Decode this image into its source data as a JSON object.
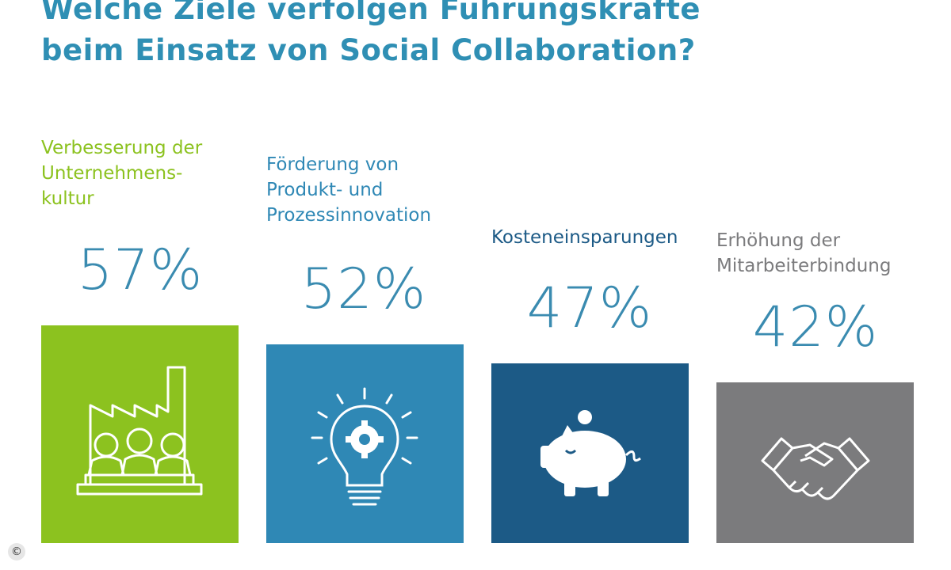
{
  "title_lines": [
    "Welche Ziele verfolgen Führungskräfte",
    "beim Einsatz von Social Collaboration?"
  ],
  "colors": {
    "title": "#2f8fb4",
    "percent": "#3a8bb0",
    "series": [
      "#8cc21f",
      "#2f88b5",
      "#1c5a86",
      "#7b7b7d"
    ],
    "label_colors": [
      "#8cc21f",
      "#2f88b5",
      "#1c5a86",
      "#7b7b7d"
    ]
  },
  "chart_data": {
    "type": "bar",
    "title": "Welche Ziele verfolgen Führungskräfte beim Einsatz von Social Collaboration?",
    "categories": [
      "Verbesserung der\nUnternehmens-\nkultur",
      "Förderung von\nProdukt- und\nProzessinnovation",
      "Kosteneinsparungen",
      "Erhöhung der\nMitarbeiterbindung"
    ],
    "values": [
      57,
      52,
      47,
      42
    ],
    "value_labels": [
      "57%",
      "52%",
      "47%",
      "42%"
    ],
    "icons": [
      "factory-people-icon",
      "lightbulb-gear-icon",
      "piggy-bank-icon",
      "handshake-icon"
    ],
    "ylim": [
      0,
      100
    ],
    "grid": false,
    "legend": "none"
  },
  "copyright_symbol": "©"
}
